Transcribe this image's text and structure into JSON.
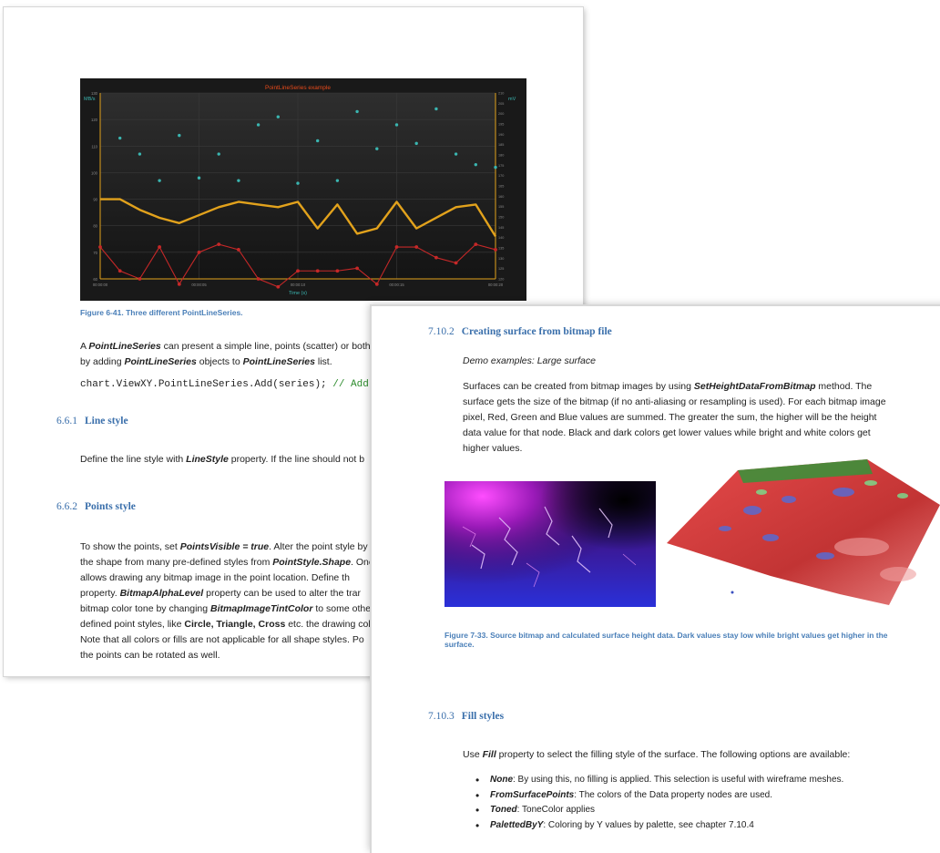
{
  "page1": {
    "chart": {
      "title": "PointLineSeries example",
      "y_left_unit": "MB/s",
      "y_right_unit": "mV",
      "x_title": "Time (s)",
      "y_left_ticks": [
        "130",
        "120",
        "110",
        "100",
        "90",
        "80",
        "70",
        "60"
      ],
      "y_right_ticks": [
        "210",
        "205",
        "200",
        "195",
        "190",
        "185",
        "180",
        "175",
        "170",
        "165",
        "160",
        "155",
        "150",
        "145",
        "140",
        "135",
        "130",
        "125",
        "120"
      ],
      "x_ticks": [
        "00:00:00",
        "00:00:05",
        "00:00:10",
        "00:00:15",
        "00:00:20"
      ]
    },
    "chart_data": {
      "type": "line",
      "title": "PointLineSeries example",
      "xlabel": "Time (s)",
      "ylabel": "MB/s",
      "y2label": "mV",
      "xlim": [
        0,
        20
      ],
      "ylim": [
        60,
        130
      ],
      "y2lim": [
        120,
        210
      ],
      "grid": true,
      "series": [
        {
          "kind": "line",
          "axis": "left",
          "color": "#e2a21c",
          "x": [
            0,
            1,
            2,
            3,
            4,
            5,
            6,
            7,
            8,
            9,
            10,
            11,
            12,
            13,
            14,
            15,
            16,
            17,
            18,
            19,
            20
          ],
          "y": [
            90,
            90,
            86,
            83,
            81,
            84,
            87,
            89,
            88,
            87,
            89,
            79,
            88,
            77,
            79,
            89,
            79,
            83,
            87,
            88,
            76
          ]
        },
        {
          "kind": "line-points",
          "axis": "left",
          "color": "#c62828",
          "x": [
            0,
            1,
            2,
            3,
            4,
            5,
            6,
            7,
            8,
            9,
            10,
            11,
            12,
            13,
            14,
            15,
            16,
            17,
            18,
            19,
            20
          ],
          "y": [
            72,
            63,
            60,
            72,
            58,
            70,
            73,
            71,
            60,
            57,
            63,
            63,
            63,
            64,
            58,
            72,
            72,
            68,
            66,
            73,
            71
          ]
        },
        {
          "kind": "points",
          "axis": "left",
          "color": "#3ab5b0",
          "x": [
            1,
            2,
            3,
            4,
            5,
            6,
            7,
            8,
            9,
            10,
            11,
            12,
            13,
            14,
            15,
            16,
            17,
            18,
            19,
            20
          ],
          "y": [
            113,
            107,
            97,
            114,
            98,
            107,
            97,
            118,
            121,
            96,
            112,
            97,
            123,
            109,
            118,
            111,
            124,
            107,
            103,
            102
          ]
        }
      ]
    },
    "figure_caption": "Figure 6-41. Three different PointLineSeries.",
    "para1": {
      "line1_pre": "A ",
      "line1_bold": "PointLineSeries",
      "line1_post": " can present a simple line, points (scatter) or both a",
      "line2_pre": "by adding ",
      "line2_bold1": "PointLineSeries",
      "line2_mid": " objects to ",
      "line2_bold2": "PointLineSeries",
      "line2_post": " list."
    },
    "code": {
      "text": "chart.ViewXY.PointLineSeries.Add(series); ",
      "comment": "// Add s"
    },
    "heading_line": {
      "num": "6.6.1",
      "title": "Line style"
    },
    "line_style_text": {
      "pre": "Define the line style with ",
      "bold": "LineStyle",
      "post": " property. If the line should not b"
    },
    "heading_points": {
      "num": "6.6.2",
      "title": "Points style"
    },
    "points_lines": [
      {
        "a": "To show the points, set ",
        "b": "PointsVisible = true",
        "c": ". Alter the point style by"
      },
      {
        "a": "the shape from many pre-defined styles from ",
        "b": "PointStyle.Shape",
        "c": ". One"
      },
      {
        "a": "allows drawing any bitmap image in the point location. Define th",
        "b": "",
        "c": ""
      },
      {
        "a": "property. ",
        "b": "BitmapAlphaLevel",
        "c": " property can be used to alter the trar"
      },
      {
        "a": "bitmap color tone by changing ",
        "b": "BitmapImageTintColor",
        "c": " to some othe"
      },
      {
        "a": "defined point styles, like ",
        "b": "Circle, Triangle, Cross",
        "c": " etc. the drawing col"
      },
      {
        "a": "Note that all colors or fills are not applicable for all shape styles. Po",
        "b": "",
        "c": ""
      },
      {
        "a": "the points can be rotated as well.",
        "b": "",
        "c": ""
      }
    ]
  },
  "page2": {
    "heading_surface": {
      "num": "7.10.2",
      "title": "Creating surface from bitmap file"
    },
    "demo": "Demo examples: Large surface",
    "surf_lines": [
      {
        "a": "Surfaces can be created from bitmap images by using ",
        "b": "SetHeightDataFromBitmap",
        "c": " method. The"
      },
      {
        "a": "surface gets the size of the bitmap (if no anti-aliasing or resampling is used). For each bitmap image",
        "b": "",
        "c": ""
      },
      {
        "a": "pixel, Red, Green and Blue values are summed. The greater the sum, the higher will be the height",
        "b": "",
        "c": ""
      },
      {
        "a": "data value for that node. Black and dark colors get lower values while bright and white colors get",
        "b": "",
        "c": ""
      },
      {
        "a": "higher values.",
        "b": "",
        "c": ""
      }
    ],
    "figure_caption_line1": "Figure 7-33. Source bitmap and calculated surface height data. Dark values stay low while bright values get higher in the",
    "figure_caption_line2": "surface.",
    "heading_fill": {
      "num": "7.10.3",
      "title": "Fill styles"
    },
    "fill_intro": {
      "pre": "Use ",
      "bold": "Fill",
      "post": " property to select the filling style of the surface. The following options are available:"
    },
    "fill_items": [
      {
        "name": "None",
        "desc": ": By using this, no filling is applied. This selection is useful with wireframe meshes."
      },
      {
        "name": "FromSurfacePoints",
        "desc": ": The colors of the Data property nodes are used."
      },
      {
        "name": "Toned",
        "desc": ": ToneColor applies"
      },
      {
        "name": "PalettedByY",
        "desc": ": Coloring by Y values by palette, see chapter 7.10.4"
      }
    ],
    "colors": {
      "heading": "#3a6fab",
      "caption": "#4a7fb8",
      "chart_bg": "#191919",
      "axis": "#e2a21c"
    }
  }
}
